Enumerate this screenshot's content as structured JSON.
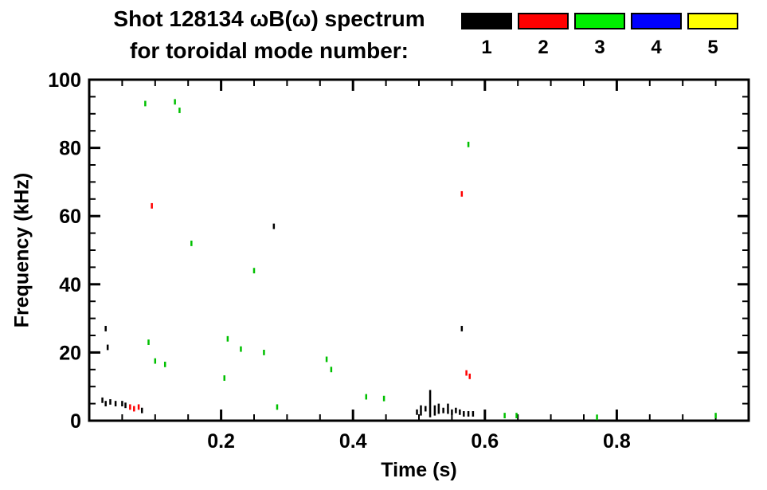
{
  "page": {
    "background": "#ffffff",
    "accent_black": "#000000"
  },
  "chart_data": {
    "type": "scatter",
    "marker": "vertical-dash",
    "title_line1": "Shot 128134 ωB(ω) spectrum",
    "title_line2": "for toroidal mode number:",
    "xlabel": "Time (s)",
    "ylabel": "Frequency (kHz)",
    "xlim": [
      0.0,
      1.0
    ],
    "ylim": [
      0,
      100
    ],
    "grid": false,
    "legend_position": "top-right",
    "x_ticks": [
      {
        "value": 0.2,
        "label": "0.2"
      },
      {
        "value": 0.4,
        "label": "0.4"
      },
      {
        "value": 0.6,
        "label": "0.6"
      },
      {
        "value": 0.8,
        "label": "0.8"
      }
    ],
    "x_minor_step": 0.05,
    "y_ticks": [
      {
        "value": 0,
        "label": "0"
      },
      {
        "value": 20,
        "label": "20"
      },
      {
        "value": 40,
        "label": "40"
      },
      {
        "value": 60,
        "label": "60"
      },
      {
        "value": 80,
        "label": "80"
      },
      {
        "value": 100,
        "label": "100"
      }
    ],
    "y_minor_step": 5,
    "legend": [
      {
        "label": "1",
        "color": "#000000"
      },
      {
        "label": "2",
        "color": "#ff0000"
      },
      {
        "label": "3",
        "color": "#00ee00"
      },
      {
        "label": "4",
        "color": "#0000ff"
      },
      {
        "label": "5",
        "color": "#ffff00"
      }
    ],
    "series": [
      {
        "name": "n=1",
        "color": "#000000",
        "points": [
          [
            0.025,
            27
          ],
          [
            0.028,
            21.5
          ],
          [
            0.02,
            6
          ],
          [
            0.025,
            5
          ],
          [
            0.032,
            5.5
          ],
          [
            0.04,
            5
          ],
          [
            0.05,
            5
          ],
          [
            0.055,
            4.5
          ],
          [
            0.08,
            3
          ],
          [
            0.28,
            57
          ],
          [
            0.497,
            2.5
          ],
          [
            0.503,
            3,
            3
          ],
          [
            0.51,
            3.5
          ],
          [
            0.517,
            5,
            8
          ],
          [
            0.524,
            3,
            3
          ],
          [
            0.53,
            3.5,
            3
          ],
          [
            0.537,
            3
          ],
          [
            0.544,
            3.5,
            3
          ],
          [
            0.55,
            2.5
          ],
          [
            0.556,
            3
          ],
          [
            0.562,
            2.5
          ],
          [
            0.568,
            2
          ],
          [
            0.575,
            2
          ],
          [
            0.582,
            2
          ],
          [
            0.565,
            27
          ]
        ]
      },
      {
        "name": "n=2",
        "color": "#ff0000",
        "points": [
          [
            0.062,
            4
          ],
          [
            0.068,
            3.5
          ],
          [
            0.075,
            4
          ],
          [
            0.095,
            63
          ],
          [
            0.565,
            66.5
          ],
          [
            0.572,
            14
          ],
          [
            0.577,
            13
          ]
        ]
      },
      {
        "name": "n=3",
        "color": "#00c000",
        "points": [
          [
            0.085,
            93
          ],
          [
            0.13,
            93.5
          ],
          [
            0.137,
            91
          ],
          [
            0.09,
            23
          ],
          [
            0.1,
            17.5
          ],
          [
            0.115,
            16.5
          ],
          [
            0.155,
            52
          ],
          [
            0.205,
            12.5
          ],
          [
            0.21,
            24
          ],
          [
            0.23,
            21
          ],
          [
            0.25,
            44
          ],
          [
            0.265,
            20
          ],
          [
            0.285,
            4
          ],
          [
            0.36,
            18
          ],
          [
            0.367,
            15
          ],
          [
            0.42,
            7
          ],
          [
            0.447,
            6.5
          ],
          [
            0.575,
            81
          ],
          [
            0.63,
            1.5
          ],
          [
            0.648,
            1.5
          ],
          [
            0.77,
            1
          ],
          [
            0.95,
            1.5
          ]
        ]
      },
      {
        "name": "n=4",
        "color": "#0000ff",
        "points": []
      },
      {
        "name": "n=5",
        "color": "#ffff00",
        "points": []
      }
    ]
  }
}
